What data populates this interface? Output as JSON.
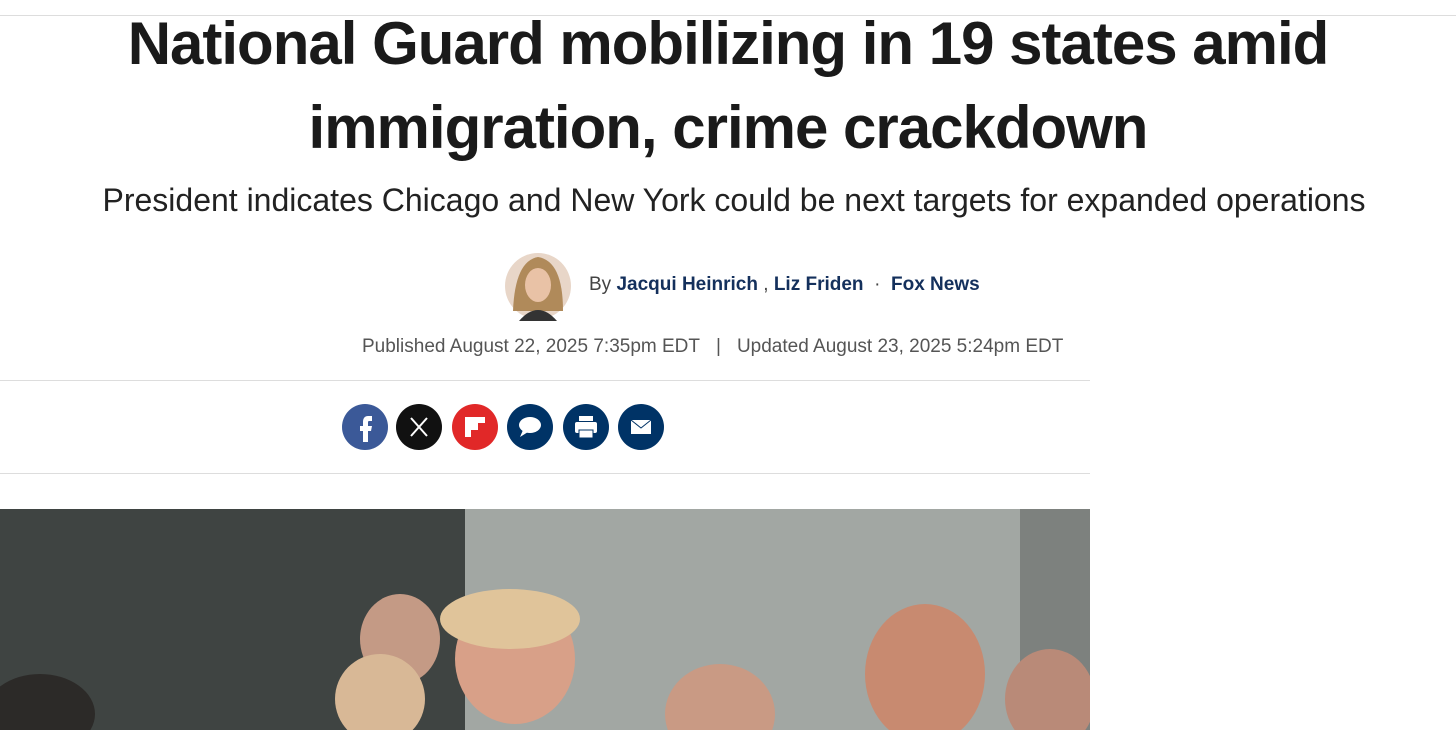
{
  "header": {
    "title": "National Guard mobilizing in 19 states amid immigration, crime crackdown",
    "subtitle": "President indicates Chicago and New York could be next targets for expanded operations"
  },
  "byline": {
    "prefix": "By",
    "authors": [
      "Jacqui Heinrich",
      "Liz Friden"
    ],
    "author_separator": ",",
    "source_separator": "·",
    "source": "Fox News"
  },
  "dates": {
    "published": "Published August 22, 2025 7:35pm EDT",
    "separator": "|",
    "updated": "Updated August 23, 2025 5:24pm EDT"
  }
}
